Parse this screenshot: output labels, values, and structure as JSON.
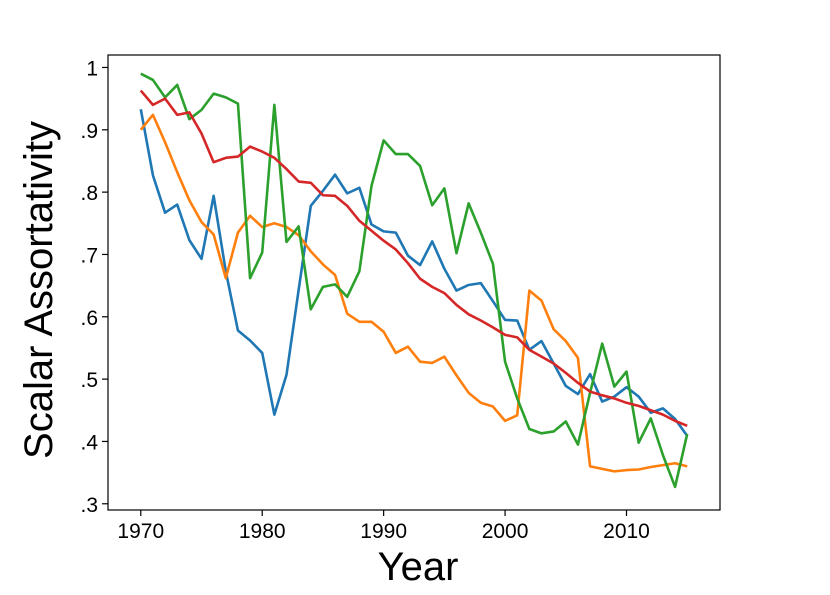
{
  "chart_data": {
    "type": "line",
    "title": "",
    "xlabel": "Year",
    "ylabel": "Scalar Assortativity",
    "xlim": [
      1967.3,
      2017.7
    ],
    "ylim": [
      0.29,
      1.02
    ],
    "grid": false,
    "legend": "none",
    "x_ticks": [
      1970,
      1980,
      1990,
      2000,
      2010
    ],
    "x_tick_labels": [
      "1970",
      "1980",
      "1990",
      "2000",
      "2010"
    ],
    "y_ticks": [
      0.3,
      0.4,
      0.5,
      0.6,
      0.7,
      0.8,
      0.9,
      1.0
    ],
    "y_tick_labels": [
      ".3",
      ".4",
      ".5",
      ".6",
      ".7",
      ".8",
      ".9",
      "1"
    ],
    "x": [
      1970,
      1971,
      1972,
      1973,
      1974,
      1975,
      1976,
      1977,
      1978,
      1979,
      1980,
      1981,
      1982,
      1983,
      1984,
      1985,
      1986,
      1987,
      1988,
      1989,
      1990,
      1991,
      1992,
      1993,
      1994,
      1995,
      1996,
      1997,
      1998,
      1999,
      2000,
      2001,
      2002,
      2003,
      2004,
      2005,
      2006,
      2007,
      2008,
      2009,
      2010,
      2011,
      2012,
      2013,
      2014,
      2015
    ],
    "series": [
      {
        "color": "#1f77b4",
        "values": [
          0.933,
          0.827,
          0.767,
          0.78,
          0.723,
          0.693,
          0.794,
          0.673,
          0.578,
          0.562,
          0.542,
          0.443,
          0.507,
          0.643,
          0.778,
          0.802,
          0.828,
          0.798,
          0.807,
          0.748,
          0.737,
          0.735,
          0.698,
          0.683,
          0.721,
          0.677,
          0.642,
          0.651,
          0.654,
          0.625,
          0.595,
          0.594,
          0.547,
          0.561,
          0.525,
          0.489,
          0.476,
          0.508,
          0.464,
          0.472,
          0.487,
          0.472,
          0.446,
          0.453,
          0.436,
          0.409
        ]
      },
      {
        "color": "#ff7f0e",
        "values": [
          0.9,
          0.924,
          0.88,
          0.832,
          0.787,
          0.752,
          0.732,
          0.662,
          0.735,
          0.762,
          0.744,
          0.75,
          0.744,
          0.731,
          0.705,
          0.684,
          0.667,
          0.605,
          0.592,
          0.592,
          0.576,
          0.542,
          0.552,
          0.528,
          0.526,
          0.536,
          0.506,
          0.478,
          0.462,
          0.456,
          0.433,
          0.442,
          0.642,
          0.626,
          0.58,
          0.561,
          0.534,
          0.36,
          0.356,
          0.352,
          0.354,
          0.355,
          0.359,
          0.362,
          0.365,
          0.36
        ]
      },
      {
        "color": "#2ca02c",
        "values": [
          0.99,
          0.98,
          0.952,
          0.972,
          0.917,
          0.932,
          0.958,
          0.952,
          0.942,
          0.662,
          0.703,
          0.94,
          0.72,
          0.745,
          0.612,
          0.648,
          0.652,
          0.632,
          0.673,
          0.81,
          0.883,
          0.861,
          0.861,
          0.842,
          0.779,
          0.806,
          0.702,
          0.782,
          0.735,
          0.685,
          0.528,
          0.469,
          0.42,
          0.413,
          0.416,
          0.432,
          0.395,
          0.478,
          0.557,
          0.488,
          0.512,
          0.398,
          0.437,
          0.378,
          0.327,
          0.412
        ]
      },
      {
        "color": "#d62728",
        "values": [
          0.963,
          0.94,
          0.95,
          0.924,
          0.928,
          0.894,
          0.848,
          0.855,
          0.857,
          0.873,
          0.865,
          0.855,
          0.837,
          0.817,
          0.815,
          0.795,
          0.794,
          0.778,
          0.754,
          0.738,
          0.722,
          0.708,
          0.686,
          0.661,
          0.648,
          0.638,
          0.619,
          0.604,
          0.594,
          0.583,
          0.571,
          0.567,
          0.547,
          0.536,
          0.525,
          0.51,
          0.494,
          0.48,
          0.474,
          0.469,
          0.462,
          0.457,
          0.45,
          0.443,
          0.433,
          0.425
        ]
      }
    ]
  }
}
